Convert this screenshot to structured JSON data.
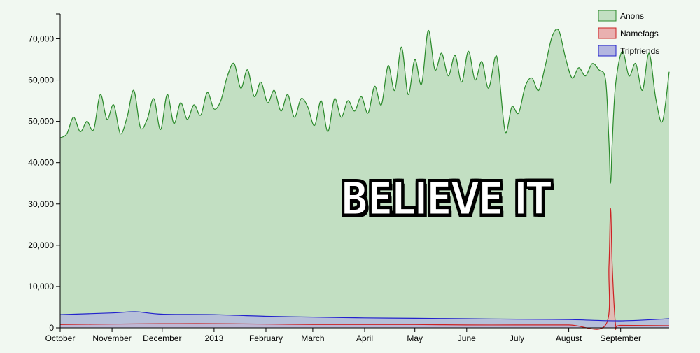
{
  "chart_data": {
    "type": "area",
    "title": "",
    "xlabel": "",
    "ylabel": "",
    "ylim": [
      0,
      76000
    ],
    "yticks": [
      0,
      10000,
      20000,
      30000,
      40000,
      50000,
      60000,
      70000
    ],
    "ytick_labels": [
      "0",
      "10,000",
      "20,000",
      "30,000",
      "40,000",
      "50,000",
      "60,000",
      "70,000"
    ],
    "x_start": "2012-10-01",
    "x_end": "2013-09-30",
    "xtick_labels": [
      "October",
      "November",
      "December",
      "2013",
      "February",
      "March",
      "April",
      "May",
      "June",
      "July",
      "August",
      "September"
    ],
    "xtick_dates": [
      "2012-10-01",
      "2012-11-01",
      "2012-12-01",
      "2013-01-01",
      "2013-02-01",
      "2013-03-01",
      "2013-04-01",
      "2013-05-01",
      "2013-06-01",
      "2013-07-01",
      "2013-08-01",
      "2013-09-01"
    ],
    "legend_position": "top-right",
    "grid": false,
    "series": [
      {
        "name": "Anons",
        "color": "#2a8a2a",
        "fill": "#c2dfc2",
        "points": [
          [
            "2012-10-01",
            46000
          ],
          [
            "2012-10-05",
            47000
          ],
          [
            "2012-10-09",
            51000
          ],
          [
            "2012-10-13",
            47500
          ],
          [
            "2012-10-17",
            50000
          ],
          [
            "2012-10-21",
            48000
          ],
          [
            "2012-10-25",
            56500
          ],
          [
            "2012-10-29",
            50500
          ],
          [
            "2012-11-02",
            54000
          ],
          [
            "2012-11-06",
            47000
          ],
          [
            "2012-11-10",
            51000
          ],
          [
            "2012-11-14",
            57500
          ],
          [
            "2012-11-18",
            48500
          ],
          [
            "2012-11-22",
            50500
          ],
          [
            "2012-11-26",
            55500
          ],
          [
            "2012-11-30",
            48000
          ],
          [
            "2012-12-04",
            56500
          ],
          [
            "2012-12-08",
            49500
          ],
          [
            "2012-12-12",
            54500
          ],
          [
            "2012-12-16",
            50500
          ],
          [
            "2012-12-20",
            54000
          ],
          [
            "2012-12-24",
            51500
          ],
          [
            "2012-12-28",
            57000
          ],
          [
            "2013-01-01",
            53000
          ],
          [
            "2013-01-05",
            55000
          ],
          [
            "2013-01-09",
            61000
          ],
          [
            "2013-01-13",
            64000
          ],
          [
            "2013-01-17",
            58000
          ],
          [
            "2013-01-21",
            62500
          ],
          [
            "2013-01-25",
            56000
          ],
          [
            "2013-01-29",
            59500
          ],
          [
            "2013-02-02",
            54500
          ],
          [
            "2013-02-06",
            57500
          ],
          [
            "2013-02-10",
            52500
          ],
          [
            "2013-02-14",
            56500
          ],
          [
            "2013-02-18",
            51000
          ],
          [
            "2013-02-22",
            55500
          ],
          [
            "2013-02-26",
            53500
          ],
          [
            "2013-03-02",
            49000
          ],
          [
            "2013-03-06",
            55000
          ],
          [
            "2013-03-10",
            47500
          ],
          [
            "2013-03-14",
            55500
          ],
          [
            "2013-03-18",
            51000
          ],
          [
            "2013-03-22",
            55000
          ],
          [
            "2013-03-26",
            52500
          ],
          [
            "2013-03-30",
            56000
          ],
          [
            "2013-04-03",
            52000
          ],
          [
            "2013-04-07",
            58500
          ],
          [
            "2013-04-11",
            54000
          ],
          [
            "2013-04-15",
            63500
          ],
          [
            "2013-04-19",
            57500
          ],
          [
            "2013-04-23",
            68000
          ],
          [
            "2013-04-27",
            56500
          ],
          [
            "2013-05-01",
            65000
          ],
          [
            "2013-05-05",
            59000
          ],
          [
            "2013-05-09",
            72000
          ],
          [
            "2013-05-13",
            62500
          ],
          [
            "2013-05-17",
            66500
          ],
          [
            "2013-05-21",
            61000
          ],
          [
            "2013-05-25",
            66000
          ],
          [
            "2013-05-29",
            59500
          ],
          [
            "2013-06-02",
            67000
          ],
          [
            "2013-06-06",
            60000
          ],
          [
            "2013-06-10",
            64500
          ],
          [
            "2013-06-14",
            58000
          ],
          [
            "2013-06-18",
            65500
          ],
          [
            "2013-06-20",
            63000
          ],
          [
            "2013-06-24",
            47500
          ],
          [
            "2013-06-28",
            53500
          ],
          [
            "2013-07-02",
            52000
          ],
          [
            "2013-07-06",
            58500
          ],
          [
            "2013-07-10",
            60500
          ],
          [
            "2013-07-14",
            57500
          ],
          [
            "2013-07-18",
            63500
          ],
          [
            "2013-07-22",
            70500
          ],
          [
            "2013-07-26",
            72000
          ],
          [
            "2013-07-30",
            65500
          ],
          [
            "2013-08-03",
            60500
          ],
          [
            "2013-08-07",
            63000
          ],
          [
            "2013-08-11",
            61000
          ],
          [
            "2013-08-15",
            64000
          ],
          [
            "2013-08-19",
            62500
          ],
          [
            "2013-08-23",
            60000
          ],
          [
            "2013-08-25",
            45000
          ],
          [
            "2013-08-26",
            35000
          ],
          [
            "2013-08-27",
            45000
          ],
          [
            "2013-08-29",
            59000
          ],
          [
            "2013-09-02",
            67000
          ],
          [
            "2013-09-06",
            61000
          ],
          [
            "2013-09-10",
            64000
          ],
          [
            "2013-09-14",
            57500
          ],
          [
            "2013-09-18",
            66500
          ],
          [
            "2013-09-22",
            55500
          ],
          [
            "2013-09-26",
            50000
          ],
          [
            "2013-09-30",
            62000
          ]
        ]
      },
      {
        "name": "Namefags",
        "color": "#cc2222",
        "fill": "#e9b0b0",
        "points": [
          [
            "2012-10-01",
            800
          ],
          [
            "2012-11-01",
            900
          ],
          [
            "2012-12-01",
            1000
          ],
          [
            "2013-01-01",
            1000
          ],
          [
            "2013-02-01",
            900
          ],
          [
            "2013-03-01",
            800
          ],
          [
            "2013-04-01",
            800
          ],
          [
            "2013-05-01",
            800
          ],
          [
            "2013-06-01",
            700
          ],
          [
            "2013-07-01",
            700
          ],
          [
            "2013-08-01",
            700
          ],
          [
            "2013-08-23",
            700
          ],
          [
            "2013-08-25",
            15000
          ],
          [
            "2013-08-26",
            29000
          ],
          [
            "2013-08-27",
            15000
          ],
          [
            "2013-08-29",
            700
          ],
          [
            "2013-09-01",
            600
          ],
          [
            "2013-09-30",
            500
          ]
        ]
      },
      {
        "name": "Tripfriends",
        "color": "#2222cc",
        "fill": "#b3b6e0",
        "points": [
          [
            "2012-10-01",
            3200
          ],
          [
            "2012-11-01",
            3600
          ],
          [
            "2012-11-15",
            3900
          ],
          [
            "2012-12-01",
            3300
          ],
          [
            "2013-01-01",
            3200
          ],
          [
            "2013-02-01",
            2800
          ],
          [
            "2013-03-01",
            2600
          ],
          [
            "2013-04-01",
            2400
          ],
          [
            "2013-05-01",
            2300
          ],
          [
            "2013-06-01",
            2200
          ],
          [
            "2013-07-01",
            2100
          ],
          [
            "2013-08-01",
            2000
          ],
          [
            "2013-09-01",
            1700
          ],
          [
            "2013-09-30",
            2200
          ]
        ]
      }
    ]
  },
  "overlay": {
    "text": "BELIEVE IT"
  }
}
